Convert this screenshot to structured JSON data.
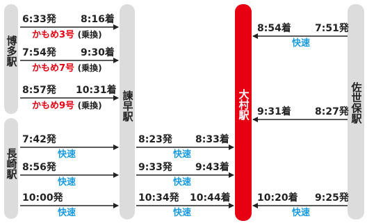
{
  "stations": {
    "hakata": "博多駅",
    "nagasaki": "長崎駅",
    "isahaya": "諫早駅",
    "omura": "大村駅",
    "sasebo": "佐世保駅"
  },
  "hakata_trains": [
    {
      "dep": "6:33発",
      "arr": "8:16着",
      "train": "かもめ3号",
      "note": "(乗換)"
    },
    {
      "dep": "7:54発",
      "arr": "9:30着",
      "train": "かもめ7号",
      "note": "(乗換)"
    },
    {
      "dep": "8:57発",
      "arr": "10:31着",
      "train": "かもめ9号",
      "note": "(乗換)"
    }
  ],
  "nagasaki_trains": [
    {
      "dep": "7:42発",
      "type": "快速"
    },
    {
      "dep": "8:56発",
      "type": "快速"
    },
    {
      "dep": "10:00発",
      "type": "快速"
    }
  ],
  "isahaya_omura": [
    {
      "dep": "8:23発",
      "arr": "8:33着",
      "type": "快速"
    },
    {
      "dep": "9:33発",
      "arr": "9:43着",
      "type": "快速"
    },
    {
      "dep": "10:34発",
      "arr": "10:44着",
      "type": "快速"
    }
  ],
  "sasebo_omura": [
    {
      "arr": "8:54着",
      "dep": "7:51発",
      "type": "快速"
    },
    {
      "arr": "9:31着",
      "dep": "8:27発",
      "type": ""
    },
    {
      "arr": "10:20着",
      "dep": "9:25発",
      "type": "快速"
    }
  ],
  "colors": {
    "pillar": "#dcdcdc",
    "omura": "#e60012",
    "limited": "#e60012",
    "rapid": "#1a9be0"
  }
}
